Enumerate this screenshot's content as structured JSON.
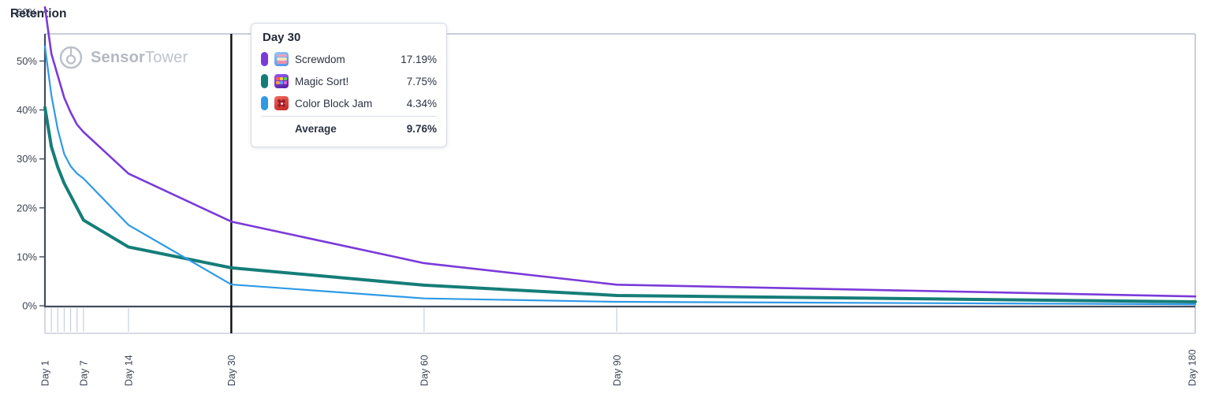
{
  "title": "Retention",
  "watermark": {
    "bold": "Sensor",
    "regular": "Tower"
  },
  "colors": {
    "screwdom": "#7a3ad9",
    "magic_sort": "#157d78",
    "color_block_jam": "#2e9ae6",
    "hover_line": "#0b0b0e",
    "axis_dark": "#444c5e",
    "border_light": "#c9cfda",
    "strip_tick": "#c6cfdd",
    "label_text": "#3c4454"
  },
  "chart_data": {
    "type": "line",
    "title": "Retention",
    "xlabel": "Day",
    "ylabel": "Retention %",
    "grid": false,
    "xlim": [
      1,
      180
    ],
    "ylim": [
      0,
      62.5
    ],
    "x": [
      1,
      2,
      3,
      4,
      5,
      6,
      7,
      14,
      30,
      60,
      90,
      180
    ],
    "series": [
      {
        "name": "Screwdom",
        "color": "#7a3ad9",
        "stroke_width": 2.6,
        "values": [
          61.0,
          51.5,
          47.0,
          42.5,
          39.5,
          37.0,
          35.5,
          27.0,
          17.19,
          8.7,
          4.3,
          1.9
        ]
      },
      {
        "name": "Magic Sort!",
        "color": "#157d78",
        "stroke_width": 4.0,
        "values": [
          40.5,
          32.5,
          28.3,
          25.0,
          22.5,
          20.0,
          17.5,
          12.0,
          7.75,
          4.2,
          2.1,
          0.8
        ]
      },
      {
        "name": "Color Block Jam",
        "color": "#2e9ae6",
        "stroke_width": 2.2,
        "values": [
          53.0,
          43.0,
          36.0,
          31.0,
          28.5,
          27.0,
          26.0,
          16.5,
          4.34,
          1.5,
          0.8,
          0.3
        ]
      }
    ],
    "y_ticks": [
      {
        "value": 0,
        "label": "0%"
      },
      {
        "value": 10,
        "label": "10%"
      },
      {
        "value": 20,
        "label": "20%"
      },
      {
        "value": 30,
        "label": "30%"
      },
      {
        "value": 40,
        "label": "40%"
      },
      {
        "value": 50,
        "label": "50%"
      },
      {
        "value": 60,
        "label": "60%"
      }
    ],
    "x_tick_labels": [
      {
        "day": 1,
        "label": "Day 1"
      },
      {
        "day": 7,
        "label": "Day 7"
      },
      {
        "day": 14,
        "label": "Day 14"
      },
      {
        "day": 30,
        "label": "Day 30"
      },
      {
        "day": 60,
        "label": "Day 60"
      },
      {
        "day": 90,
        "label": "Day 90"
      },
      {
        "day": 180,
        "label": "Day 180"
      }
    ],
    "minor_tick_days": [
      1,
      2,
      3,
      4,
      5,
      6,
      7,
      14,
      30,
      60,
      90,
      180
    ],
    "hover_day": 30,
    "legend_position": "tooltip"
  },
  "tooltip": {
    "title": "Day 30",
    "rows": [
      {
        "name": "Screwdom",
        "value": "17.19%",
        "marker_color": "#7a3ad9",
        "icon": "screwdom-app-icon"
      },
      {
        "name": "Magic Sort!",
        "value": "7.75%",
        "marker_color": "#157d78",
        "icon": "magic-sort-app-icon"
      },
      {
        "name": "Color Block Jam",
        "value": "4.34%",
        "marker_color": "#2e9ae6",
        "icon": "color-block-jam-app-icon"
      }
    ],
    "average_label": "Average",
    "average_value": "9.76%"
  }
}
